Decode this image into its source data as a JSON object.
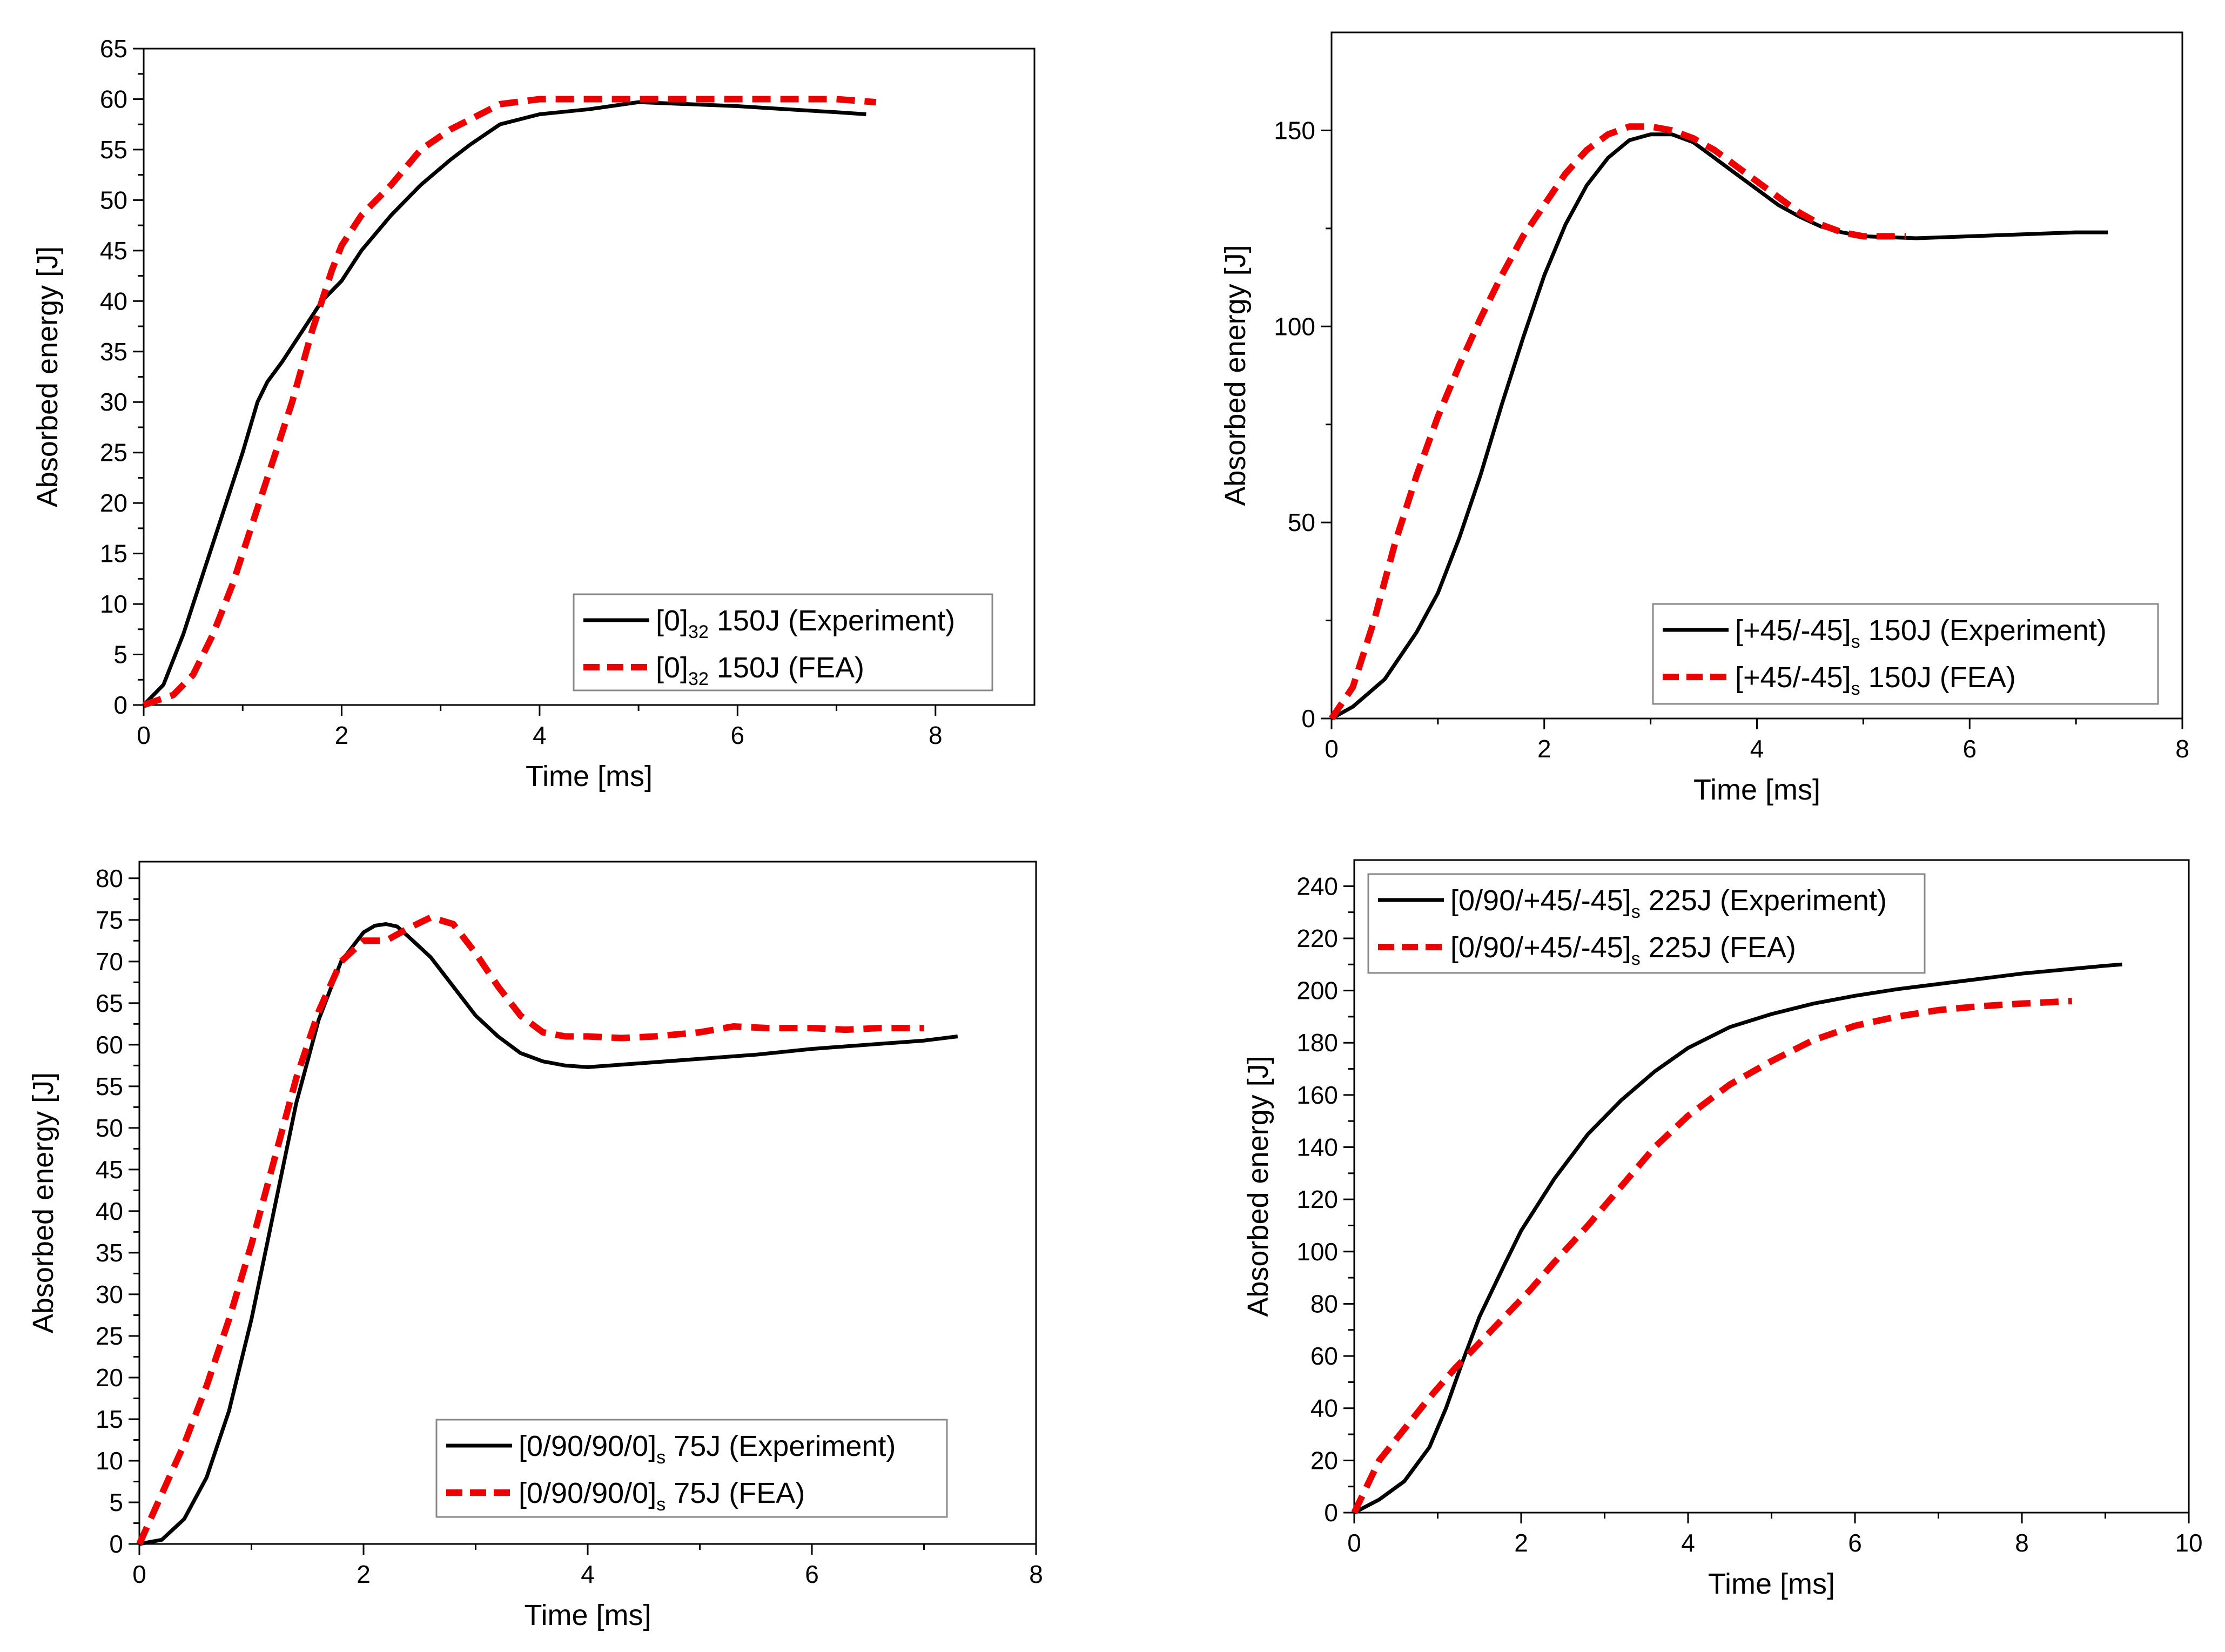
{
  "figure": {
    "colors": {
      "experiment": "#000000",
      "fea": "#ee0000",
      "axis": "#000000",
      "background": "#ffffff"
    }
  },
  "chart_data": [
    {
      "type": "line",
      "panel": "top-left",
      "title": "",
      "xlabel": "Time [ms]",
      "ylabel": "Absorbed energy [J]",
      "xlim": [
        0,
        9
      ],
      "ylim": [
        0,
        65
      ],
      "xticks": [
        0,
        2,
        4,
        6,
        8
      ],
      "xtick_labels": [
        "0",
        "2",
        "4",
        "6",
        "8"
      ],
      "yticks": [
        0,
        5,
        10,
        15,
        20,
        25,
        30,
        35,
        40,
        45,
        50,
        55,
        60,
        65
      ],
      "ytick_labels": [
        "0",
        "5",
        "10",
        "15",
        "20",
        "25",
        "30",
        "35",
        "40",
        "45",
        "50",
        "55",
        "60",
        "65"
      ],
      "legend_position": "bottom-right",
      "series": [
        {
          "name": "[0]32 150J (Experiment)",
          "legend": {
            "pre": "[0]",
            "sub": "32",
            "post": " 150J (Experiment)"
          },
          "style": "solid",
          "x": [
            0,
            0.2,
            0.4,
            0.6,
            0.8,
            1.0,
            1.15,
            1.25,
            1.4,
            1.6,
            1.8,
            2.0,
            2.2,
            2.5,
            2.8,
            3.1,
            3.3,
            3.6,
            4.0,
            4.5,
            5.0,
            5.5,
            6.0,
            6.5,
            7.0,
            7.3
          ],
          "y": [
            0,
            2,
            7,
            13,
            19,
            25,
            30,
            32,
            34,
            37,
            40,
            42,
            45,
            48.5,
            51.5,
            54,
            55.5,
            57.5,
            58.5,
            59,
            59.7,
            59.5,
            59.3,
            59,
            58.7,
            58.5
          ]
        },
        {
          "name": "[0]32 150J (FEA)",
          "legend": {
            "pre": "[0]",
            "sub": "32",
            "post": " 150J (FEA)"
          },
          "style": "dashed",
          "x": [
            0,
            0.3,
            0.5,
            0.7,
            0.9,
            1.1,
            1.3,
            1.5,
            1.7,
            1.9,
            2.0,
            2.2,
            2.5,
            2.8,
            3.1,
            3.4,
            3.6,
            4.0,
            4.5,
            5.0,
            5.5,
            6.0,
            6.5,
            7.0,
            7.4
          ],
          "y": [
            0,
            1,
            3,
            7,
            12,
            18,
            24,
            30,
            37,
            43,
            45.5,
            48.5,
            51.5,
            55,
            57,
            58.5,
            59.5,
            60,
            60,
            60,
            60,
            60,
            60,
            60,
            59.7
          ]
        }
      ]
    },
    {
      "type": "line",
      "panel": "top-right",
      "title": "",
      "xlabel": "Time [ms]",
      "ylabel": "Absorbed energy [J]",
      "xlim": [
        0,
        8
      ],
      "ylim": [
        0,
        175
      ],
      "xticks": [
        0,
        2,
        4,
        6,
        8
      ],
      "xtick_labels": [
        "0",
        "2",
        "4",
        "6",
        "8"
      ],
      "yticks": [
        0,
        50,
        100,
        150
      ],
      "ytick_labels": [
        "0",
        "50",
        "100",
        "150"
      ],
      "legend_position": "bottom-right",
      "series": [
        {
          "name": "[+45/-45]s 150J (Experiment)",
          "legend": {
            "pre": "[+45/-45]",
            "sub": "s",
            "post": " 150J (Experiment)"
          },
          "style": "solid",
          "x": [
            0,
            0.2,
            0.5,
            0.8,
            1.0,
            1.2,
            1.4,
            1.6,
            1.8,
            2.0,
            2.2,
            2.4,
            2.6,
            2.8,
            3.0,
            3.2,
            3.4,
            3.6,
            3.8,
            4.0,
            4.2,
            4.4,
            4.6,
            4.8,
            5.0,
            5.5,
            6.0,
            6.5,
            7.0,
            7.3
          ],
          "y": [
            0,
            3,
            10,
            22,
            32,
            46,
            62,
            80,
            97,
            113,
            126,
            136,
            143,
            147.5,
            149,
            149,
            147,
            143,
            139,
            135,
            131,
            128,
            125.5,
            124,
            123,
            122.5,
            123,
            123.5,
            124,
            124
          ]
        },
        {
          "name": "[+45/-45]s 150J (FEA)",
          "legend": {
            "pre": "[+45/-45]",
            "sub": "s",
            "post": " 150J (FEA)"
          },
          "style": "dashed",
          "x": [
            0,
            0.2,
            0.4,
            0.6,
            0.8,
            1.0,
            1.2,
            1.4,
            1.6,
            1.8,
            2.0,
            2.2,
            2.4,
            2.6,
            2.8,
            3.0,
            3.2,
            3.4,
            3.6,
            3.8,
            4.0,
            4.2,
            4.4,
            4.6,
            4.8,
            5.0,
            5.2,
            5.4
          ],
          "y": [
            0,
            8,
            25,
            45,
            62,
            77,
            90,
            102,
            113,
            123,
            131,
            139,
            145,
            149,
            151,
            151,
            150,
            148,
            145,
            141,
            137,
            133,
            129,
            126,
            124,
            123,
            123,
            123
          ]
        }
      ]
    },
    {
      "type": "line",
      "panel": "bottom-left",
      "title": "",
      "xlabel": "Time [ms]",
      "ylabel": "Absorbed energy [J]",
      "xlim": [
        0,
        8
      ],
      "ylim": [
        0,
        82
      ],
      "xticks": [
        0,
        2,
        4,
        6,
        8
      ],
      "xtick_labels": [
        "0",
        "2",
        "4",
        "6",
        "8"
      ],
      "yticks": [
        0,
        5,
        10,
        15,
        20,
        25,
        30,
        35,
        40,
        45,
        50,
        55,
        60,
        65,
        70,
        75,
        80
      ],
      "ytick_labels": [
        "0",
        "5",
        "10",
        "15",
        "20",
        "25",
        "30",
        "35",
        "40",
        "45",
        "50",
        "55",
        "60",
        "65",
        "70",
        "75",
        "80"
      ],
      "legend_position": "bottom-right",
      "series": [
        {
          "name": "[0/90/90/0]s 75J (Experiment)",
          "legend": {
            "pre": "[0/90/90/0]",
            "sub": "s",
            "post": " 75J (Experiment)"
          },
          "style": "solid",
          "x": [
            0,
            0.2,
            0.4,
            0.6,
            0.8,
            1.0,
            1.2,
            1.4,
            1.6,
            1.8,
            2.0,
            2.1,
            2.2,
            2.3,
            2.4,
            2.6,
            2.8,
            3.0,
            3.2,
            3.4,
            3.6,
            3.8,
            4.0,
            4.5,
            5.0,
            5.5,
            6.0,
            6.5,
            7.0,
            7.3
          ],
          "y": [
            0,
            0.5,
            3,
            8,
            16,
            27,
            40,
            53,
            63,
            70,
            73.5,
            74.3,
            74.5,
            74.2,
            73,
            70.5,
            67,
            63.5,
            61,
            59,
            58,
            57.5,
            57.3,
            57.8,
            58.3,
            58.8,
            59.5,
            60,
            60.5,
            61
          ]
        },
        {
          "name": "[0/90/90/0]s 75J (FEA)",
          "legend": {
            "pre": "[0/90/90/0]",
            "sub": "s",
            "post": " 75J (FEA)"
          },
          "style": "dashed",
          "x": [
            0,
            0.2,
            0.4,
            0.6,
            0.8,
            1.0,
            1.2,
            1.4,
            1.6,
            1.8,
            2.0,
            2.2,
            2.4,
            2.6,
            2.8,
            3.0,
            3.2,
            3.4,
            3.6,
            3.8,
            4.0,
            4.3,
            4.6,
            5.0,
            5.3,
            5.6,
            6.0,
            6.3,
            6.6,
            7.0
          ],
          "y": [
            0,
            6,
            12,
            19,
            27,
            36,
            46,
            56,
            64,
            70,
            72.5,
            72.5,
            74,
            75.3,
            74.5,
            71,
            67,
            63.5,
            61.5,
            61,
            61,
            60.8,
            61,
            61.5,
            62.2,
            62,
            62,
            61.8,
            62,
            62
          ]
        }
      ]
    },
    {
      "type": "line",
      "panel": "bottom-right",
      "title": "",
      "xlabel": "Time [ms]",
      "ylabel": "Absorbed energy [J]",
      "xlim": [
        0,
        10
      ],
      "ylim": [
        0,
        250
      ],
      "xticks": [
        0,
        2,
        4,
        6,
        8,
        10
      ],
      "xtick_labels": [
        "0",
        "2",
        "4",
        "6",
        "8",
        "10"
      ],
      "yticks": [
        0,
        20,
        40,
        60,
        80,
        100,
        120,
        140,
        160,
        180,
        200,
        220,
        240
      ],
      "ytick_labels": [
        "0",
        "20",
        "40",
        "60",
        "80",
        "100",
        "120",
        "140",
        "160",
        "180",
        "200",
        "220",
        "240"
      ],
      "legend_position": "top-left",
      "series": [
        {
          "name": "[0/90/+45/-45]s 225J (Experiment)",
          "legend": {
            "pre": "[0/90/+45/-45]",
            "sub": "s",
            "post": " 225J (Experiment)"
          },
          "style": "solid",
          "x": [
            0,
            0.3,
            0.6,
            0.9,
            1.1,
            1.3,
            1.5,
            1.8,
            2.0,
            2.4,
            2.8,
            3.2,
            3.6,
            4.0,
            4.5,
            5.0,
            5.5,
            6.0,
            6.5,
            7.0,
            7.5,
            8.0,
            8.5,
            9.0,
            9.2
          ],
          "y": [
            0,
            5,
            12,
            25,
            40,
            58,
            75,
            95,
            108,
            128,
            145,
            158,
            169,
            178,
            186,
            191,
            195,
            198,
            200.5,
            202.5,
            204.5,
            206.5,
            208,
            209.5,
            210
          ]
        },
        {
          "name": "[0/90/+45/-45]s 225J (FEA)",
          "legend": {
            "pre": "[0/90/+45/-45]",
            "sub": "s",
            "post": " 225J (FEA)"
          },
          "style": "dashed",
          "x": [
            0,
            0.3,
            0.6,
            0.9,
            1.2,
            1.5,
            1.8,
            2.1,
            2.4,
            2.8,
            3.2,
            3.6,
            4.0,
            4.5,
            5.0,
            5.5,
            6.0,
            6.5,
            7.0,
            7.5,
            8.0,
            8.6
          ],
          "y": [
            0,
            20,
            32,
            44,
            55,
            65,
            75,
            85,
            96,
            110,
            125,
            140,
            152,
            164,
            173,
            181,
            186.5,
            190,
            192.5,
            194,
            195,
            196
          ]
        }
      ]
    }
  ]
}
